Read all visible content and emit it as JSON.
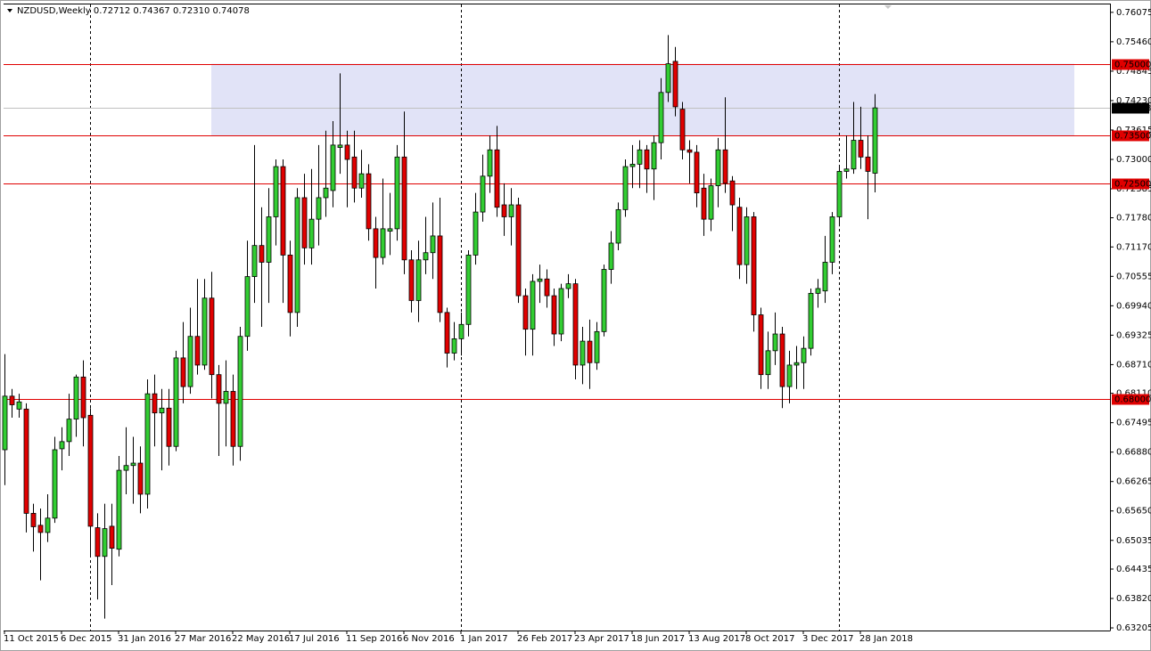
{
  "chart_data": {
    "type": "candlestick",
    "title": "NZDUSD,Weekly",
    "ohlc_readout": [
      "0.72712",
      "0.74367",
      "0.72310",
      "0.74078"
    ],
    "categories": [
      "11 Oct 2015",
      null,
      null,
      null,
      null,
      null,
      null,
      null,
      "6 Dec 2015",
      null,
      null,
      null,
      null,
      null,
      null,
      null,
      "31 Jan 2016",
      null,
      null,
      null,
      null,
      null,
      null,
      null,
      "27 Mar 2016",
      null,
      null,
      null,
      null,
      null,
      null,
      null,
      "22 May 2016",
      null,
      null,
      null,
      null,
      null,
      null,
      null,
      "17 Jul 2016",
      null,
      null,
      null,
      null,
      null,
      null,
      null,
      "11 Sep 2016",
      null,
      null,
      null,
      null,
      null,
      null,
      null,
      "6 Nov 2016",
      null,
      null,
      null,
      null,
      null,
      null,
      null,
      "1 Jan 2017",
      null,
      null,
      null,
      null,
      null,
      null,
      null,
      "26 Feb 2017",
      null,
      null,
      null,
      null,
      null,
      null,
      null,
      "23 Apr 2017",
      null,
      null,
      null,
      null,
      null,
      null,
      null,
      "18 Jun 2017",
      null,
      null,
      null,
      null,
      null,
      null,
      null,
      "13 Aug 2017",
      null,
      null,
      null,
      null,
      null,
      null,
      null,
      "8 Oct 2017",
      null,
      null,
      null,
      null,
      null,
      null,
      null,
      "3 Dec 2017",
      null,
      null,
      null,
      null,
      null,
      null,
      null,
      "28 Jan 2018",
      null,
      null
    ],
    "open": [
      0.6693,
      0.6805,
      0.6778,
      0.6778,
      0.656,
      0.6535,
      0.652,
      0.655,
      0.6695,
      0.671,
      0.6757,
      0.6845,
      0.6765,
      0.653,
      0.647,
      0.6533,
      0.6485,
      0.665,
      0.666,
      0.6665,
      0.66,
      0.681,
      0.677,
      0.678,
      0.67,
      0.6885,
      0.6825,
      0.693,
      0.687,
      0.701,
      0.685,
      0.679,
      0.6815,
      0.67,
      0.693,
      0.7055,
      0.712,
      0.7085,
      0.718,
      0.7285,
      0.71,
      0.698,
      0.722,
      0.7115,
      0.7175,
      0.722,
      0.7235,
      0.7325,
      0.733,
      0.7305,
      0.724,
      0.727,
      0.7155,
      0.7095,
      0.715,
      0.7155,
      0.7305,
      0.709,
      0.7005,
      0.709,
      0.7105,
      0.714,
      0.698,
      0.6895,
      0.6925,
      0.6955,
      0.71,
      0.719,
      0.7265,
      0.732,
      0.7205,
      0.718,
      0.7205,
      0.7015,
      0.6945,
      0.7045,
      0.705,
      0.7015,
      0.6935,
      0.703,
      0.704,
      0.687,
      0.692,
      0.6875,
      0.694,
      0.707,
      0.7125,
      0.7195,
      0.7285,
      0.729,
      0.732,
      0.728,
      0.7335,
      0.744,
      0.7505,
      0.7405,
      0.732,
      0.7315,
      0.724,
      0.7175,
      0.7245,
      0.732,
      0.7255,
      0.72,
      0.708,
      0.718,
      0.6975,
      0.685,
      0.69,
      0.6935,
      0.6825,
      0.687,
      0.6875,
      0.6905,
      0.702,
      0.7025,
      0.7085,
      0.718,
      0.7275,
      0.728,
      0.734,
      0.7305,
      0.72712
    ],
    "high": [
      0.6893,
      0.682,
      0.681,
      0.679,
      0.658,
      0.657,
      0.66,
      0.672,
      0.674,
      0.681,
      0.685,
      0.688,
      0.678,
      0.656,
      0.658,
      0.658,
      0.668,
      0.674,
      0.672,
      0.67,
      0.684,
      0.685,
      0.682,
      0.682,
      0.69,
      0.696,
      0.699,
      0.705,
      0.705,
      0.7065,
      0.687,
      0.688,
      0.685,
      0.695,
      0.713,
      0.733,
      0.72,
      0.724,
      0.73,
      0.73,
      0.713,
      0.724,
      0.727,
      0.728,
      0.733,
      0.736,
      0.738,
      0.748,
      0.736,
      0.736,
      0.732,
      0.729,
      0.718,
      0.726,
      0.723,
      0.733,
      0.74,
      0.711,
      0.713,
      0.718,
      0.721,
      0.722,
      0.699,
      0.696,
      0.698,
      0.711,
      0.723,
      0.731,
      0.735,
      0.737,
      0.725,
      0.724,
      0.722,
      0.703,
      0.706,
      0.708,
      0.707,
      0.703,
      0.704,
      0.706,
      0.705,
      0.695,
      0.6965,
      0.696,
      0.708,
      0.715,
      0.721,
      0.73,
      0.733,
      0.734,
      0.733,
      0.735,
      0.747,
      0.756,
      0.7535,
      0.742,
      0.734,
      0.733,
      0.727,
      0.726,
      0.7345,
      0.743,
      0.7265,
      0.722,
      0.72,
      0.719,
      0.699,
      0.694,
      0.698,
      0.695,
      0.69,
      0.691,
      0.693,
      0.703,
      0.705,
      0.714,
      0.719,
      0.7285,
      0.735,
      0.742,
      0.741,
      0.735,
      0.74367
    ],
    "low": [
      0.6619,
      0.676,
      0.676,
      0.652,
      0.648,
      0.642,
      0.65,
      0.654,
      0.665,
      0.668,
      0.672,
      0.67,
      0.647,
      0.638,
      0.634,
      0.641,
      0.647,
      0.66,
      0.658,
      0.656,
      0.657,
      0.67,
      0.665,
      0.666,
      0.669,
      0.679,
      0.681,
      0.685,
      0.686,
      0.68,
      0.668,
      0.67,
      0.666,
      0.667,
      0.69,
      0.7,
      0.695,
      0.7,
      0.712,
      0.7,
      0.693,
      0.695,
      0.708,
      0.708,
      0.712,
      0.718,
      0.72,
      0.727,
      0.72,
      0.721,
      0.722,
      0.713,
      0.703,
      0.708,
      0.71,
      0.713,
      0.706,
      0.698,
      0.696,
      0.706,
      0.705,
      0.696,
      0.6865,
      0.688,
      0.689,
      0.693,
      0.708,
      0.717,
      0.723,
      0.718,
      0.714,
      0.712,
      0.7,
      0.689,
      0.689,
      0.7,
      0.699,
      0.691,
      0.692,
      0.701,
      0.684,
      0.683,
      0.682,
      0.686,
      0.693,
      0.704,
      0.711,
      0.718,
      0.724,
      0.724,
      0.723,
      0.7215,
      0.73,
      0.742,
      0.739,
      0.73,
      0.725,
      0.72,
      0.714,
      0.715,
      0.72,
      0.723,
      0.715,
      0.705,
      0.704,
      0.694,
      0.682,
      0.682,
      0.687,
      0.678,
      0.679,
      0.682,
      0.682,
      0.689,
      0.699,
      0.7,
      0.706,
      0.716,
      0.726,
      0.727,
      0.728,
      0.7175,
      0.7231
    ],
    "close": [
      0.6805,
      0.6787,
      0.6793,
      0.656,
      0.6532,
      0.652,
      0.655,
      0.6693,
      0.671,
      0.6757,
      0.6845,
      0.676,
      0.6533,
      0.647,
      0.6528,
      0.6487,
      0.665,
      0.666,
      0.6665,
      0.66,
      0.681,
      0.677,
      0.678,
      0.67,
      0.6885,
      0.6825,
      0.693,
      0.687,
      0.701,
      0.685,
      0.679,
      0.6815,
      0.67,
      0.693,
      0.7055,
      0.712,
      0.7085,
      0.718,
      0.7285,
      0.71,
      0.698,
      0.722,
      0.7115,
      0.7175,
      0.722,
      0.724,
      0.733,
      0.733,
      0.73,
      0.724,
      0.727,
      0.7155,
      0.7095,
      0.7155,
      0.7155,
      0.7305,
      0.709,
      0.7005,
      0.709,
      0.7105,
      0.714,
      0.698,
      0.6895,
      0.6925,
      0.6955,
      0.71,
      0.719,
      0.7265,
      0.732,
      0.72,
      0.718,
      0.7205,
      0.7015,
      0.6945,
      0.7045,
      0.705,
      0.7015,
      0.6935,
      0.703,
      0.704,
      0.687,
      0.692,
      0.6875,
      0.694,
      0.707,
      0.7125,
      0.7195,
      0.7285,
      0.729,
      0.732,
      0.728,
      0.7335,
      0.744,
      0.75,
      0.741,
      0.732,
      0.7315,
      0.723,
      0.7175,
      0.7245,
      0.732,
      0.725,
      0.7205,
      0.708,
      0.718,
      0.6975,
      0.685,
      0.69,
      0.6935,
      0.6825,
      0.687,
      0.6875,
      0.6905,
      0.702,
      0.703,
      0.7085,
      0.718,
      0.7275,
      0.728,
      0.734,
      0.7305,
      0.7275,
      0.74078
    ],
    "up_color": "#32cd32",
    "down_color": "#e00000",
    "ylim": [
      0.6315,
      0.7624
    ],
    "yticks": [
      {
        "value": 0.76075,
        "label": "0.76075"
      },
      {
        "value": 0.7546,
        "label": "0.75460"
      },
      {
        "value": 0.74845,
        "label": "0.74845"
      },
      {
        "value": 0.7423,
        "label": "0.74230"
      },
      {
        "value": 0.73615,
        "label": "0.73615"
      },
      {
        "value": 0.73,
        "label": "0.73000"
      },
      {
        "value": 0.72385,
        "label": "0.72385"
      },
      {
        "value": 0.7178,
        "label": "0.71780"
      },
      {
        "value": 0.7117,
        "label": "0.71170"
      },
      {
        "value": 0.70555,
        "label": "0.70555"
      },
      {
        "value": 0.6994,
        "label": "0.69940"
      },
      {
        "value": 0.69325,
        "label": "0.69325"
      },
      {
        "value": 0.6871,
        "label": "0.68710"
      },
      {
        "value": 0.6811,
        "label": "0.68110"
      },
      {
        "value": 0.67495,
        "label": "0.67495"
      },
      {
        "value": 0.6688,
        "label": "0.66880"
      },
      {
        "value": 0.66265,
        "label": "0.66265"
      },
      {
        "value": 0.6565,
        "label": "0.65650"
      },
      {
        "value": 0.65035,
        "label": "0.65035"
      },
      {
        "value": 0.64435,
        "label": "0.64435"
      },
      {
        "value": 0.6382,
        "label": "0.63820"
      },
      {
        "value": 0.63205,
        "label": "0.63205"
      }
    ],
    "zone": {
      "from": 0.735,
      "to": 0.75,
      "color": "#e1e3f7"
    },
    "hlines": [
      {
        "value": 0.75,
        "label": "0.75000"
      },
      {
        "value": 0.735,
        "label": "0.73500"
      },
      {
        "value": 0.725,
        "label": "0.72500"
      },
      {
        "value": 0.68,
        "label": "0.68000"
      }
    ],
    "hline_color": "#e00000",
    "current_price": {
      "value": 0.74078,
      "label": "0.74078"
    }
  }
}
